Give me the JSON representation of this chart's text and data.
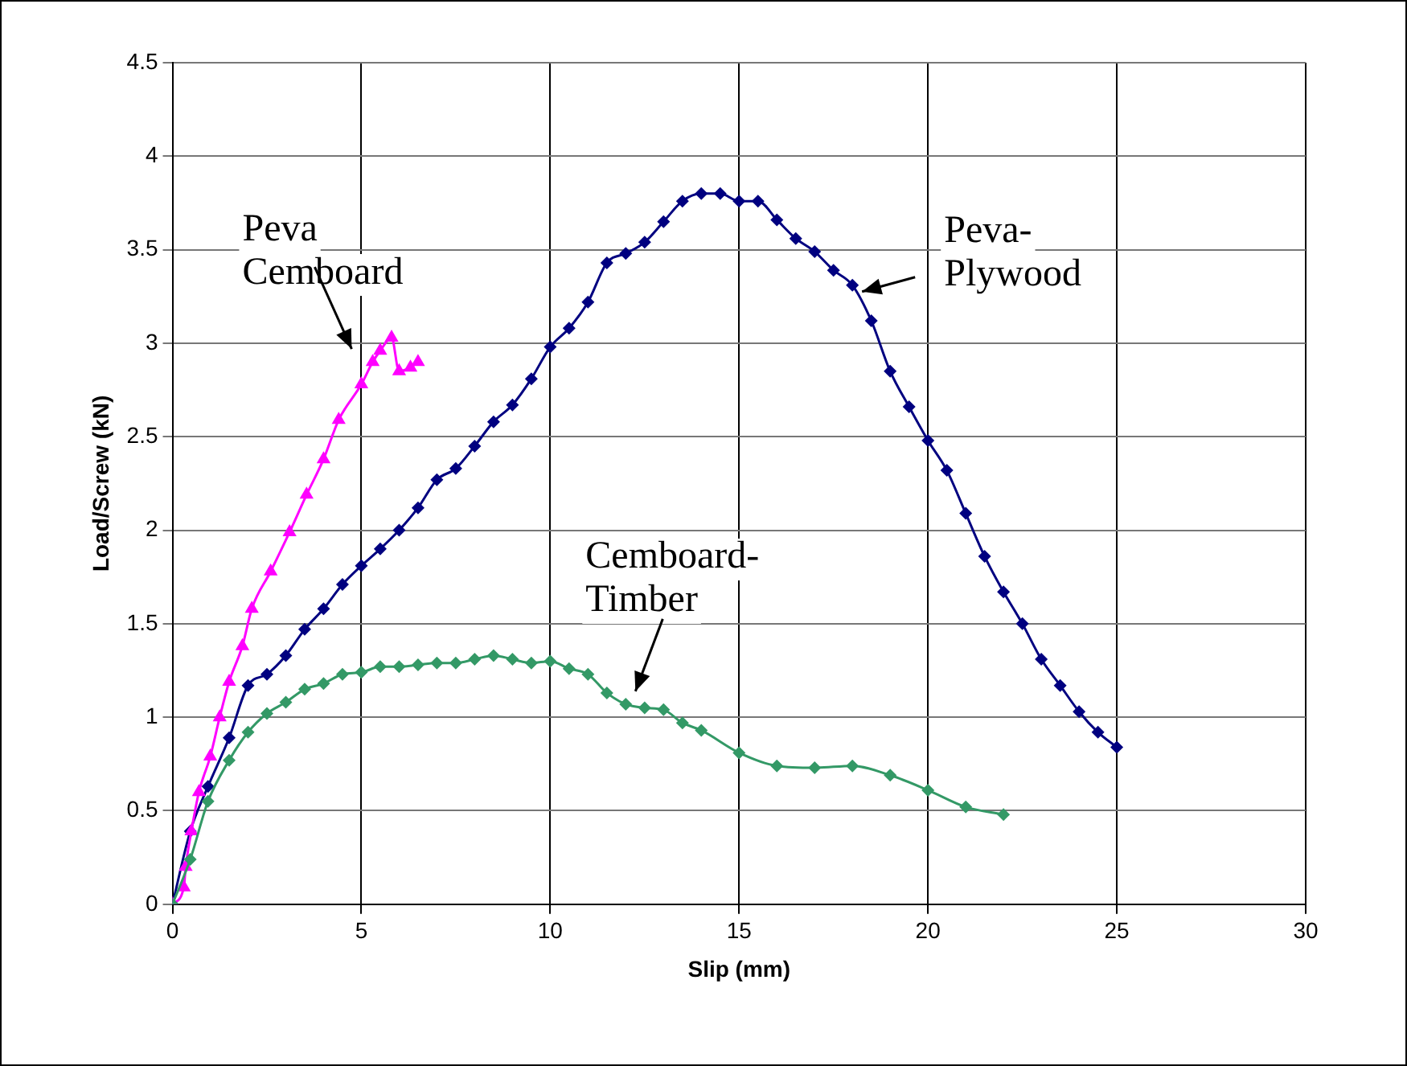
{
  "chart_data": {
    "type": "line",
    "xlabel": "Slip (mm)",
    "ylabel": "Load/Screw (kN)",
    "xlim": [
      0,
      30
    ],
    "xticks": [
      0,
      5,
      10,
      15,
      20,
      25,
      30
    ],
    "ylim": [
      0,
      4.5
    ],
    "yticks": [
      0,
      0.5,
      1,
      1.5,
      2,
      2.5,
      3,
      3.5,
      4,
      4.5
    ],
    "grid": true,
    "legend": false,
    "series": [
      {
        "name": "Peva-Plywood",
        "color": "#000080",
        "marker": "diamond",
        "x": [
          0,
          0.47,
          0.94,
          1.5,
          2,
          2.5,
          3,
          3.5,
          4,
          4.5,
          5,
          5.5,
          6,
          6.5,
          7,
          7.5,
          8,
          8.5,
          9,
          9.5,
          10,
          10.5,
          11,
          11.5,
          12,
          12.5,
          13,
          13.5,
          14,
          14.5,
          15,
          15.5,
          16,
          16.5,
          17,
          17.5,
          18,
          18.5,
          19,
          19.5,
          20,
          20.5,
          21,
          21.5,
          22,
          22.5,
          23,
          23.5,
          24,
          24.5,
          25
        ],
        "values": [
          0,
          0.39,
          0.63,
          0.89,
          1.17,
          1.23,
          1.33,
          1.47,
          1.58,
          1.71,
          1.81,
          1.9,
          2,
          2.12,
          2.27,
          2.33,
          2.45,
          2.58,
          2.67,
          2.81,
          2.98,
          3.08,
          3.22,
          3.43,
          3.48,
          3.54,
          3.65,
          3.76,
          3.8,
          3.8,
          3.76,
          3.76,
          3.66,
          3.56,
          3.49,
          3.39,
          3.31,
          3.12,
          2.85,
          2.66,
          2.48,
          2.32,
          2.09,
          1.86,
          1.67,
          1.5,
          1.31,
          1.17,
          1.03,
          0.92,
          0.84
        ]
      },
      {
        "name": "Peva Cemboard",
        "color": "#ff00ff",
        "marker": "triangle",
        "x": [
          0,
          0.3,
          0.35,
          0.5,
          0.7,
          1,
          1.25,
          1.5,
          1.85,
          2.1,
          2.6,
          3.1,
          3.55,
          4,
          4.4,
          5,
          5.3,
          5.5,
          5.8,
          6,
          6.3,
          6.5
        ],
        "values": [
          0,
          0.09,
          0.2,
          0.39,
          0.6,
          0.79,
          1,
          1.19,
          1.38,
          1.58,
          1.78,
          1.99,
          2.19,
          2.38,
          2.59,
          2.78,
          2.9,
          2.96,
          3.03,
          2.85,
          2.87,
          2.9
        ]
      },
      {
        "name": "Cemboard-Timber",
        "color": "#339966",
        "marker": "diamond",
        "x": [
          0,
          0.47,
          0.94,
          1.5,
          2,
          2.5,
          3,
          3.5,
          4,
          4.5,
          5,
          5.5,
          6,
          6.5,
          7,
          7.5,
          8,
          8.5,
          9,
          9.5,
          10,
          10.5,
          11,
          11.5,
          12,
          12.5,
          13,
          13.5,
          14,
          15,
          16,
          17,
          18,
          19,
          20,
          21,
          22
        ],
        "values": [
          0,
          0.24,
          0.55,
          0.77,
          0.92,
          1.02,
          1.08,
          1.15,
          1.18,
          1.23,
          1.24,
          1.27,
          1.27,
          1.28,
          1.29,
          1.29,
          1.31,
          1.33,
          1.31,
          1.29,
          1.3,
          1.26,
          1.23,
          1.13,
          1.07,
          1.05,
          1.04,
          0.97,
          0.93,
          0.81,
          0.74,
          0.73,
          0.74,
          0.69,
          0.61,
          0.52,
          0.48
        ]
      }
    ]
  }
}
